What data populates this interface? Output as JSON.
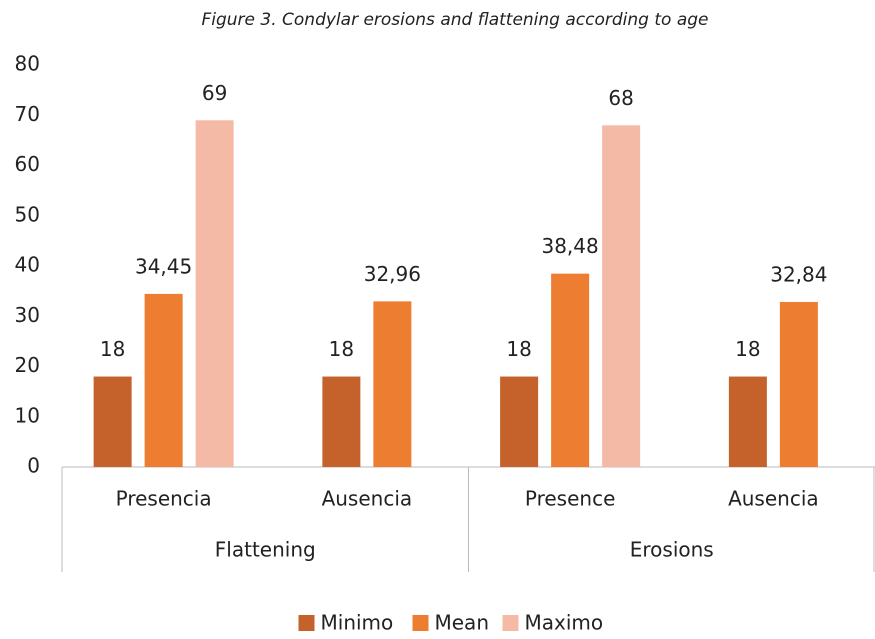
{
  "chart_data": {
    "type": "bar",
    "title": "Figure 3. Condylar erosions and flattening according to age",
    "groups": [
      {
        "name": "Flattening",
        "categories": [
          "Presencia",
          "Ausencia"
        ]
      },
      {
        "name": "Erosions",
        "categories": [
          "Presence",
          "Ausencia"
        ]
      }
    ],
    "series": [
      {
        "name": "Minimo",
        "color": "#c5612a",
        "values": [
          18,
          18,
          18,
          18
        ],
        "value_labels": [
          "18",
          "18",
          "18",
          "18"
        ]
      },
      {
        "name": "Mean",
        "color": "#ed7d31",
        "values": [
          34.45,
          32.96,
          38.48,
          32.84
        ],
        "value_labels": [
          "34,45",
          "32,96",
          "38,48",
          "32,84"
        ]
      },
      {
        "name": "Maximo",
        "color": "#f5baa6",
        "values": [
          69,
          null,
          68,
          null
        ],
        "value_labels": [
          "69",
          null,
          "68",
          null
        ]
      }
    ],
    "ylim": [
      0,
      80
    ],
    "yticks": [
      0,
      10,
      20,
      30,
      40,
      50,
      60,
      70,
      80
    ],
    "grid": false,
    "legend": "bottom"
  }
}
